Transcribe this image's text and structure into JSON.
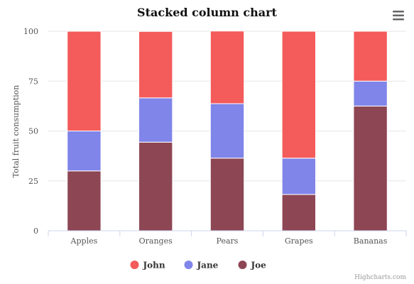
{
  "chart_data": {
    "type": "bar",
    "stacked": "percent",
    "title": "Stacked column chart",
    "xlabel": "",
    "ylabel": "Total fruit consumption",
    "categories": [
      "Apples",
      "Oranges",
      "Pears",
      "Grapes",
      "Bananas"
    ],
    "ylim": [
      0,
      100
    ],
    "yticks": [
      0,
      25,
      50,
      75,
      100
    ],
    "grid": true,
    "legend_position": "bottom",
    "series": [
      {
        "name": "John",
        "color": "#f45b5b",
        "values": [
          50,
          33.3,
          36.4,
          63.6,
          25
        ]
      },
      {
        "name": "Jane",
        "color": "#8085e9",
        "values": [
          20,
          22.2,
          27.3,
          18.2,
          12.5
        ]
      },
      {
        "name": "Joe",
        "color": "#8d4654",
        "values": [
          30,
          44.4,
          36.4,
          18.2,
          62.5
        ]
      }
    ]
  },
  "menu_icon": "hamburger-menu-icon",
  "credits": "Highcharts.com"
}
